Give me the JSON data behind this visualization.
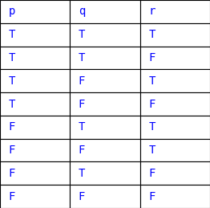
{
  "headers": [
    "p",
    "q",
    "r"
  ],
  "rows": [
    [
      "T",
      "T",
      "T"
    ],
    [
      "T",
      "T",
      "F"
    ],
    [
      "T",
      "F",
      "T"
    ],
    [
      "T",
      "F",
      "F"
    ],
    [
      "F",
      "T",
      "T"
    ],
    [
      "F",
      "F",
      "T"
    ],
    [
      "F",
      "T",
      "F"
    ],
    [
      "F",
      "F",
      "F"
    ]
  ],
  "text_color": "#0000ff",
  "header_text_color": "#0000ff",
  "bg_color": "#ffffff",
  "border_color": "#000000",
  "font_size": 10,
  "header_font_size": 10,
  "figsize": [
    2.62,
    2.59
  ],
  "dpi": 100
}
